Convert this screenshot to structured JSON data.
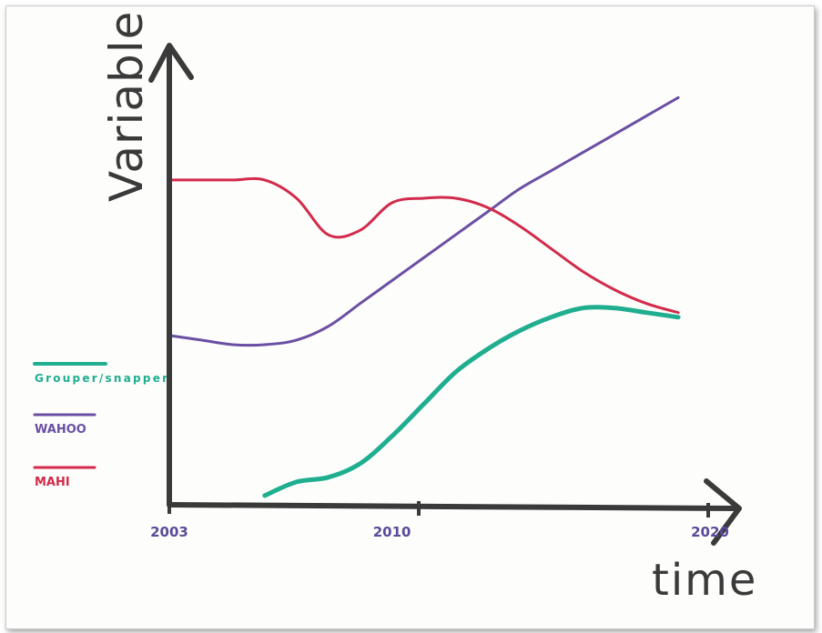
{
  "chart_data": {
    "type": "line",
    "title": "",
    "xlabel": "time",
    "ylabel": "Variable",
    "x_ticks": [
      "2003",
      "2010",
      "2020"
    ],
    "xlim": [
      2003,
      2020
    ],
    "ylim": [
      0,
      10
    ],
    "grid": false,
    "legend_position": "left",
    "series": [
      {
        "name": "Grouper/snapper",
        "color": "#1fae8f",
        "x": [
          2006,
          2007,
          2008,
          2009,
          2010,
          2011,
          2012,
          2013,
          2014,
          2015,
          2016,
          2017,
          2018,
          2019
        ],
        "values": [
          0.2,
          0.5,
          0.6,
          0.9,
          1.5,
          2.2,
          2.9,
          3.4,
          3.8,
          4.1,
          4.3,
          4.3,
          4.2,
          4.1
        ]
      },
      {
        "name": "WAHOO",
        "color": "#6a4fa3",
        "x": [
          2003,
          2004,
          2005,
          2006,
          2007,
          2008,
          2009,
          2010,
          2011,
          2012,
          2013,
          2014,
          2015,
          2016,
          2017,
          2018,
          2019
        ],
        "values": [
          3.7,
          3.6,
          3.5,
          3.5,
          3.6,
          3.9,
          4.4,
          4.9,
          5.4,
          5.9,
          6.4,
          6.9,
          7.3,
          7.7,
          8.1,
          8.5,
          8.9
        ]
      },
      {
        "name": "MAHI",
        "color": "#d22a4a",
        "x": [
          2003,
          2004,
          2005,
          2006,
          2007,
          2008,
          2009,
          2010,
          2011,
          2012,
          2013,
          2014,
          2015,
          2016,
          2017,
          2018,
          2019
        ],
        "values": [
          7.1,
          7.1,
          7.1,
          7.1,
          6.7,
          5.9,
          6.0,
          6.6,
          6.7,
          6.7,
          6.5,
          6.1,
          5.6,
          5.1,
          4.7,
          4.4,
          4.2
        ]
      }
    ]
  },
  "colors": {
    "axis": "#3a3a3a",
    "tick_text": "#5b4a9a"
  }
}
